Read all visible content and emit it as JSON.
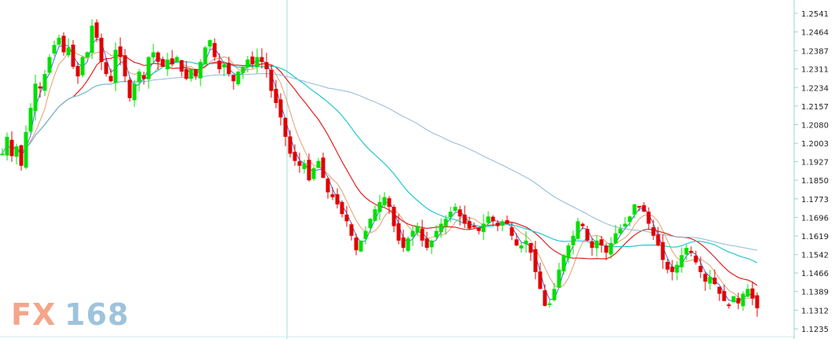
{
  "chart_data": {
    "type": "candlestick",
    "title": "",
    "xlabel": "",
    "ylabel": "",
    "ylim": [
      1.2235,
      1.2582
    ],
    "y_axis_position": "right",
    "y_ticks": [
      "1.2541",
      "1.2464",
      "1.2387",
      "1.2311",
      "1.2234",
      "1.2157",
      "1.2080",
      "1.2003",
      "1.1927",
      "1.1850",
      "1.1773",
      "1.1696",
      "1.1619",
      "1.1542",
      "1.1466",
      "1.1389",
      "1.1312",
      "1.1235"
    ],
    "y_tick_values": [
      1.2541,
      1.2464,
      1.2387,
      1.2311,
      1.2234,
      1.2157,
      1.208,
      1.2003,
      1.1927,
      1.185,
      1.1773,
      1.1696,
      1.1619,
      1.1542,
      1.1466,
      1.1389,
      1.1312,
      1.1235
    ],
    "crosshair_index": 72,
    "colors": {
      "up": "#00e000",
      "down": "#e00000",
      "ma_fast": "#3f6fe0",
      "ma_short": "#e0a070",
      "ma_mid": "#e02020",
      "ma_long": "#20c8d0",
      "ma_very_long": "#90b8d8",
      "crosshair": "#a8d8d8",
      "axis": "#9ad0d8"
    },
    "close_points": [
      [
        0,
        1.196
      ],
      [
        6,
        1.203
      ],
      [
        12,
        1.195
      ],
      [
        18,
        1.199
      ],
      [
        24,
        1.191
      ],
      [
        30,
        1.205
      ],
      [
        36,
        1.215
      ],
      [
        42,
        1.225
      ],
      [
        48,
        1.223
      ],
      [
        54,
        1.229
      ],
      [
        60,
        1.236
      ],
      [
        66,
        1.241
      ],
      [
        72,
        1.244
      ],
      [
        78,
        1.238
      ],
      [
        84,
        1.24
      ],
      [
        90,
        1.232
      ],
      [
        96,
        1.228
      ],
      [
        102,
        1.236
      ],
      [
        108,
        1.238
      ],
      [
        114,
        1.249
      ],
      [
        120,
        1.244
      ],
      [
        126,
        1.234
      ],
      [
        132,
        1.229
      ],
      [
        138,
        1.226
      ],
      [
        144,
        1.239
      ],
      [
        150,
        1.236
      ],
      [
        156,
        1.228
      ],
      [
        162,
        1.219
      ],
      [
        168,
        1.225
      ],
      [
        174,
        1.23
      ],
      [
        180,
        1.227
      ],
      [
        186,
        1.236
      ],
      [
        192,
        1.238
      ],
      [
        198,
        1.234
      ],
      [
        204,
        1.232
      ],
      [
        210,
        1.235
      ],
      [
        216,
        1.233
      ],
      [
        222,
        1.236
      ],
      [
        228,
        1.23
      ],
      [
        234,
        1.227
      ],
      [
        240,
        1.231
      ],
      [
        246,
        1.228
      ],
      [
        252,
        1.234
      ],
      [
        258,
        1.24
      ],
      [
        264,
        1.243
      ],
      [
        270,
        1.236
      ],
      [
        276,
        1.231
      ],
      [
        282,
        1.233
      ],
      [
        288,
        1.229
      ],
      [
        294,
        1.226
      ],
      [
        300,
        1.23
      ],
      [
        306,
        1.232
      ],
      [
        312,
        1.235
      ],
      [
        318,
        1.233
      ],
      [
        324,
        1.236
      ],
      [
        330,
        1.234
      ],
      [
        336,
        1.231
      ],
      [
        342,
        1.222
      ],
      [
        348,
        1.217
      ],
      [
        354,
        1.211
      ],
      [
        360,
        1.203
      ],
      [
        366,
        1.196
      ],
      [
        372,
        1.193
      ],
      [
        378,
        1.191
      ],
      [
        384,
        1.192
      ],
      [
        390,
        1.185
      ],
      [
        396,
        1.19
      ],
      [
        402,
        1.193
      ],
      [
        408,
        1.186
      ],
      [
        414,
        1.18
      ],
      [
        420,
        1.178
      ],
      [
        426,
        1.175
      ],
      [
        432,
        1.171
      ],
      [
        438,
        1.168
      ],
      [
        444,
        1.162
      ],
      [
        450,
        1.156
      ],
      [
        456,
        1.16
      ],
      [
        462,
        1.164
      ],
      [
        468,
        1.169
      ],
      [
        474,
        1.173
      ],
      [
        480,
        1.176
      ],
      [
        486,
        1.178
      ],
      [
        492,
        1.174
      ],
      [
        498,
        1.166
      ],
      [
        504,
        1.16
      ],
      [
        510,
        1.157
      ],
      [
        516,
        1.161
      ],
      [
        522,
        1.164
      ],
      [
        528,
        1.166
      ],
      [
        534,
        1.16
      ],
      [
        540,
        1.157
      ],
      [
        546,
        1.16
      ],
      [
        552,
        1.164
      ],
      [
        558,
        1.167
      ],
      [
        564,
        1.169
      ],
      [
        570,
        1.172
      ],
      [
        576,
        1.174
      ],
      [
        582,
        1.17
      ],
      [
        588,
        1.167
      ],
      [
        594,
        1.165
      ],
      [
        600,
        1.166
      ],
      [
        606,
        1.164
      ],
      [
        612,
        1.167
      ],
      [
        618,
        1.17
      ],
      [
        624,
        1.168
      ],
      [
        630,
        1.166
      ],
      [
        636,
        1.168
      ],
      [
        642,
        1.167
      ],
      [
        648,
        1.162
      ],
      [
        654,
        1.158
      ],
      [
        660,
        1.158
      ],
      [
        666,
        1.16
      ],
      [
        672,
        1.155
      ],
      [
        678,
        1.147
      ],
      [
        684,
        1.14
      ],
      [
        690,
        1.133
      ],
      [
        696,
        1.134
      ],
      [
        702,
        1.14
      ],
      [
        708,
        1.148
      ],
      [
        714,
        1.154
      ],
      [
        720,
        1.158
      ],
      [
        726,
        1.162
      ],
      [
        732,
        1.168
      ],
      [
        738,
        1.166
      ],
      [
        744,
        1.16
      ],
      [
        750,
        1.157
      ],
      [
        756,
        1.16
      ],
      [
        762,
        1.158
      ],
      [
        768,
        1.155
      ],
      [
        774,
        1.159
      ],
      [
        780,
        1.163
      ],
      [
        786,
        1.165
      ],
      [
        792,
        1.167
      ],
      [
        798,
        1.17
      ],
      [
        804,
        1.175
      ],
      [
        810,
        1.174
      ],
      [
        816,
        1.172
      ],
      [
        822,
        1.167
      ],
      [
        828,
        1.162
      ],
      [
        834,
        1.158
      ],
      [
        840,
        1.152
      ],
      [
        846,
        1.148
      ],
      [
        852,
        1.147
      ],
      [
        858,
        1.15
      ],
      [
        864,
        1.154
      ],
      [
        870,
        1.157
      ],
      [
        876,
        1.155
      ],
      [
        882,
        1.151
      ],
      [
        888,
        1.147
      ],
      [
        894,
        1.143
      ],
      [
        900,
        1.145
      ],
      [
        906,
        1.142
      ],
      [
        912,
        1.138
      ],
      [
        918,
        1.135
      ],
      [
        924,
        1.133
      ],
      [
        930,
        1.137
      ],
      [
        936,
        1.134
      ],
      [
        942,
        1.138
      ],
      [
        948,
        1.14
      ],
      [
        954,
        1.136
      ],
      [
        960,
        1.132
      ]
    ]
  }
}
